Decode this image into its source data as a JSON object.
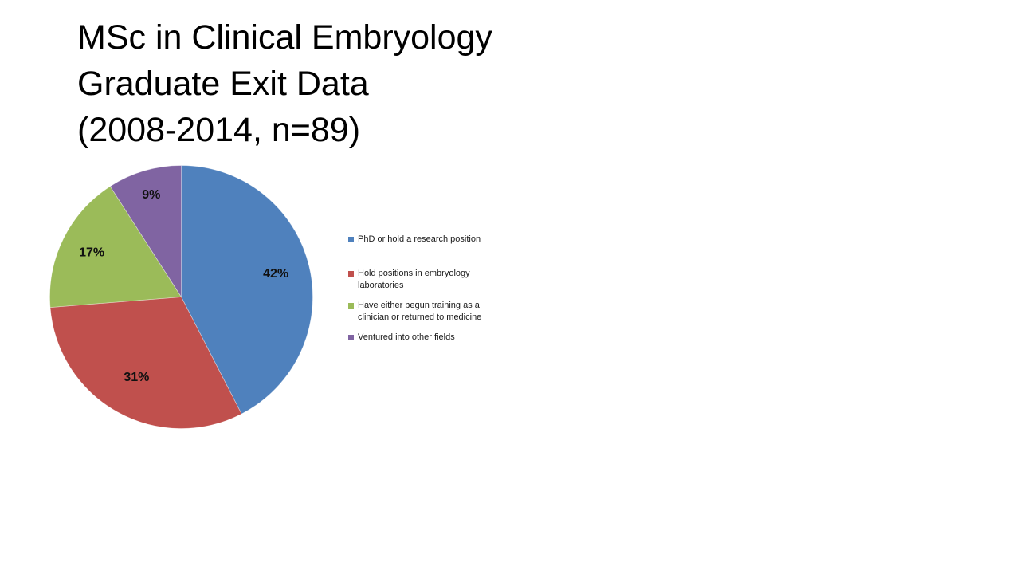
{
  "slide": {
    "title_lines": [
      "MSc in Clinical Embryology",
      "Graduate Exit Data",
      "(2008-2014, n=89)"
    ]
  },
  "chart_data": {
    "type": "pie",
    "title": "MSc in Clinical Embryology Graduate Exit Data (2008-2014, n=89)",
    "sample_note": "n=89",
    "years": "2008-2014",
    "start_angle_deg": 0,
    "direction": "clockwise",
    "legend_position": "right",
    "slices": [
      {
        "label": "PhD or hold a research position",
        "value": 42,
        "pct_label": "42%",
        "color": "#4F81BD",
        "label_r": 0.74
      },
      {
        "label": "Hold positions in embryology laboratories",
        "value": 31,
        "pct_label": "31%",
        "color": "#C0504D",
        "label_r": 0.7
      },
      {
        "label": "Have either begun training as a clinician or returned to medicine",
        "value": 17,
        "pct_label": "17%",
        "color": "#9BBB59",
        "label_r": 0.76
      },
      {
        "label": "Ventured into other fields",
        "value": 9,
        "pct_label": "9%",
        "color": "#8064A2",
        "label_r": 0.81
      }
    ]
  }
}
